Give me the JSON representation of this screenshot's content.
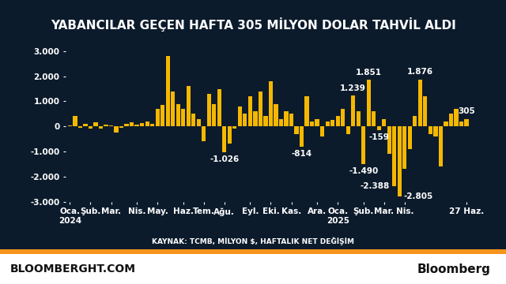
{
  "chart_data": {
    "type": "bar",
    "title": "YABANCILAR GEÇEN HAFTA 305 MİLYON DOLAR TAHVİL ALDI",
    "source": "KAYNAK: TCMB, MİLYON $, HAFTALIK NET DEĞİŞİM",
    "footer_left": "BLOOMBERGHT.COM",
    "footer_right": "Bloomberg",
    "categories": [
      "Oca.\n2024",
      null,
      null,
      null,
      "Şub.",
      null,
      null,
      null,
      "Mar.",
      null,
      null,
      null,
      null,
      "Nis.",
      null,
      null,
      null,
      "May.",
      null,
      null,
      null,
      null,
      "Haz.",
      null,
      null,
      null,
      "Tem.",
      null,
      null,
      null,
      "Ağu.",
      null,
      null,
      null,
      null,
      "Eyl.",
      null,
      null,
      null,
      "Eki.",
      null,
      null,
      null,
      "Kas.",
      null,
      null,
      null,
      null,
      "Ara.",
      null,
      null,
      null,
      "Oca.\n2025",
      null,
      null,
      null,
      null,
      "Şub.",
      null,
      null,
      null,
      "Mar.",
      null,
      null,
      null,
      "Nis.",
      null,
      null,
      null,
      null,
      null,
      null,
      null,
      null,
      null,
      null,
      null,
      "27 Haz."
    ],
    "values": [
      50,
      400,
      -50,
      100,
      -80,
      150,
      -100,
      60,
      30,
      -250,
      -60,
      100,
      150,
      80,
      120,
      200,
      100,
      700,
      850,
      2800,
      1400,
      900,
      700,
      1600,
      500,
      300,
      -600,
      1300,
      900,
      1500,
      -1026,
      -700,
      -100,
      800,
      500,
      1200,
      600,
      1400,
      400,
      1800,
      900,
      300,
      600,
      500,
      -300,
      -814,
      1200,
      200,
      300,
      -400,
      200,
      250,
      400,
      700,
      -300,
      1239,
      600,
      -1490,
      1851,
      600,
      -159,
      300,
      -1100,
      -2388,
      -2805,
      -1700,
      -900,
      400,
      1876,
      1200,
      -300,
      -400,
      -1600,
      200,
      500,
      700,
      200,
      305
    ],
    "value_labels": [
      null,
      null,
      null,
      null,
      null,
      null,
      null,
      null,
      null,
      null,
      null,
      null,
      null,
      null,
      null,
      null,
      null,
      null,
      null,
      null,
      null,
      null,
      null,
      null,
      null,
      null,
      null,
      null,
      null,
      null,
      "-1.026",
      null,
      null,
      null,
      null,
      null,
      null,
      null,
      null,
      null,
      null,
      null,
      null,
      null,
      null,
      "-814",
      null,
      null,
      null,
      null,
      null,
      null,
      null,
      null,
      null,
      "1.239",
      null,
      "-1.490",
      "1.851",
      null,
      "-159",
      null,
      null,
      "-2.388",
      "-2.805",
      null,
      null,
      null,
      "1.876",
      null,
      null,
      null,
      null,
      null,
      null,
      null,
      null,
      "305"
    ],
    "data_labels": true,
    "color": "#f5b800",
    "ylim": [
      -3000,
      3000
    ],
    "yticks": [
      {
        "value": -3000,
        "label": "-3.000"
      },
      {
        "value": -2000,
        "label": "-2.000"
      },
      {
        "value": -1000,
        "label": "-1.000"
      },
      0,
      {
        "value": 1000,
        "label": "1.000"
      },
      {
        "value": 2000,
        "label": "2.000"
      },
      {
        "value": 3000,
        "label": "3.000"
      }
    ],
    "grid": false
  }
}
